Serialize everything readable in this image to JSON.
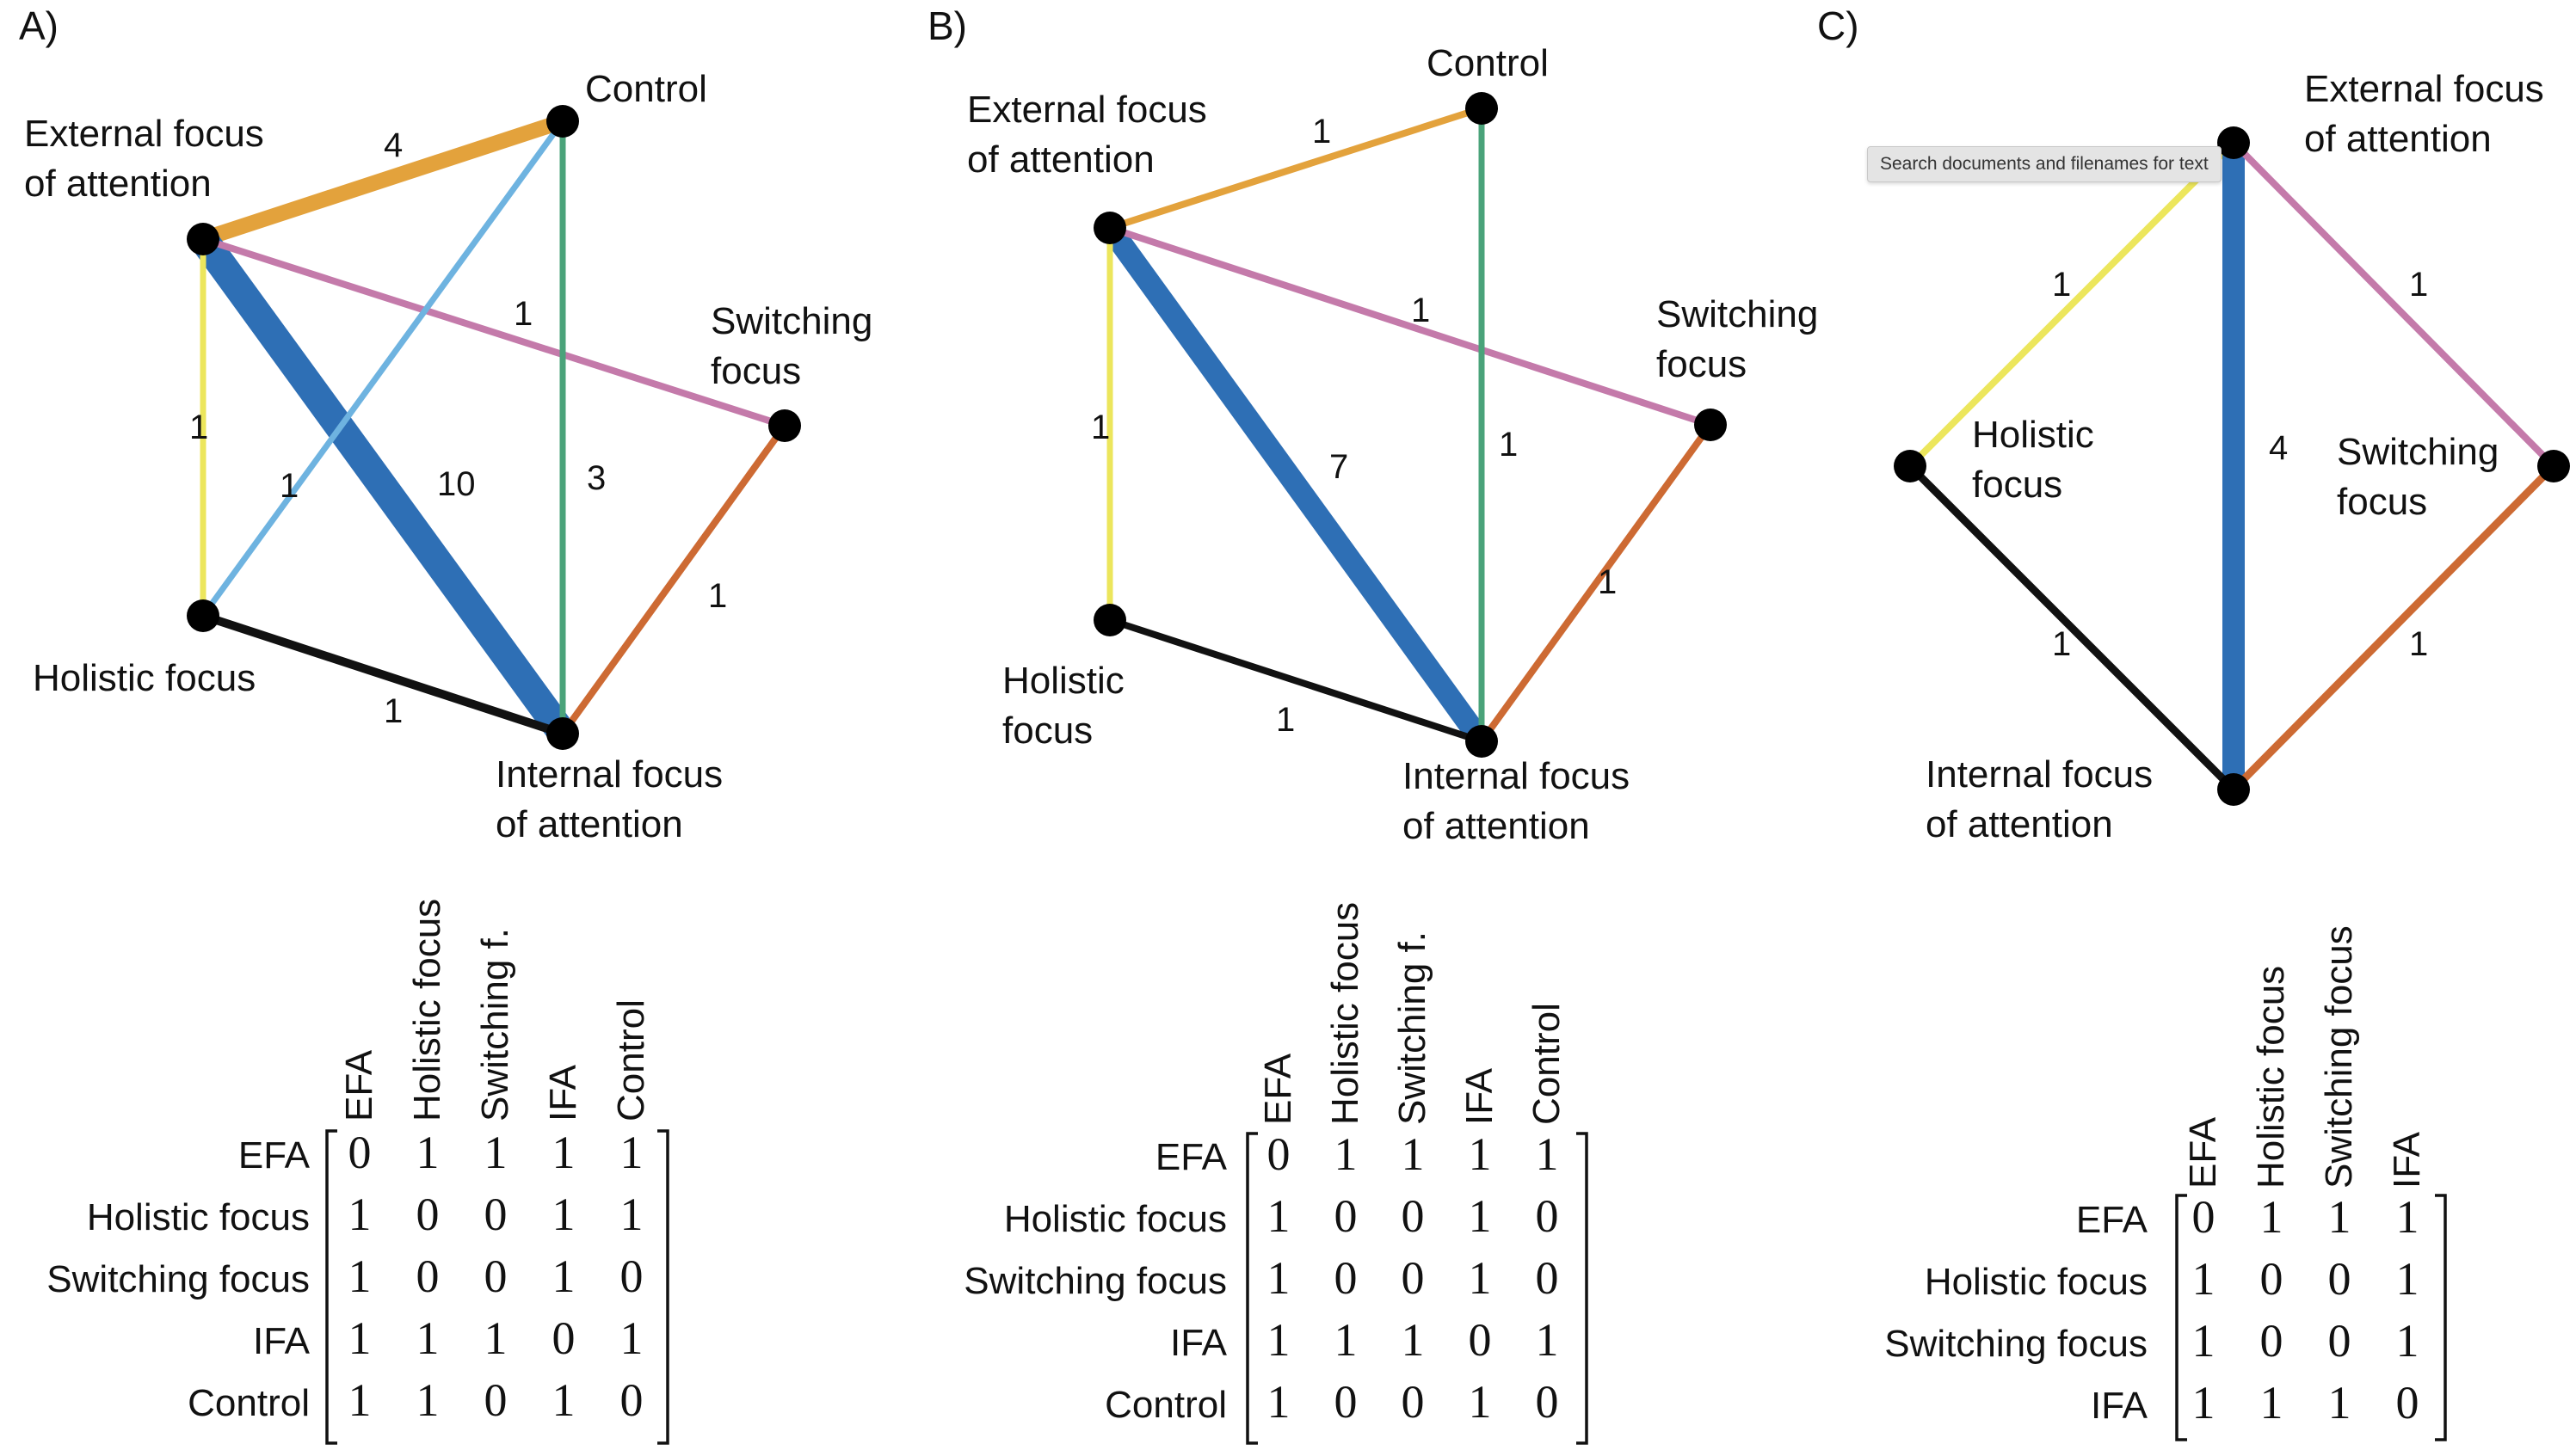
{
  "panels": [
    {
      "letter": "A)",
      "nodes": [
        "External focus|of attention",
        "Control",
        "Switching|focus",
        "Holistic focus",
        "Internal focus|of attention"
      ],
      "edges": [
        {
          "from": "EFA",
          "to": "Control",
          "weight": "4",
          "color": "#e3a23c"
        },
        {
          "from": "EFA",
          "to": "IFA",
          "weight": "10",
          "color": "#2e6fb5"
        },
        {
          "from": "EFA",
          "to": "Switching",
          "weight": "1",
          "color": "#c47aaa"
        },
        {
          "from": "EFA",
          "to": "Holistic",
          "weight": "1",
          "color": "#ece65c"
        },
        {
          "from": "Holistic",
          "to": "Control",
          "weight": "1",
          "color": "#6eb3e0"
        },
        {
          "from": "Control",
          "to": "IFA",
          "weight": "3",
          "color": "#4aa37a"
        },
        {
          "from": "Switching",
          "to": "IFA",
          "weight": "1",
          "color": "#cd6a33"
        },
        {
          "from": "Holistic",
          "to": "IFA",
          "weight": "1",
          "color": "#111111"
        }
      ],
      "matrix": {
        "col_headers": [
          "EFA",
          "Holistic focus",
          "Switching f.",
          "IFA",
          "Control"
        ],
        "row_headers": [
          "EFA",
          "Holistic focus",
          "Switching focus",
          "IFA",
          "Control"
        ],
        "rows": [
          [
            "0",
            "1",
            "1",
            "1",
            "1"
          ],
          [
            "1",
            "0",
            "0",
            "1",
            "1"
          ],
          [
            "1",
            "0",
            "0",
            "1",
            "0"
          ],
          [
            "1",
            "1",
            "1",
            "0",
            "1"
          ],
          [
            "1",
            "1",
            "0",
            "1",
            "0"
          ]
        ]
      }
    },
    {
      "letter": "B)",
      "nodes": [
        "External focus|of attention",
        "Control",
        "Switching|focus",
        "Holistic|focus",
        "Internal focus|of attention"
      ],
      "edges": [
        {
          "from": "EFA",
          "to": "Control",
          "weight": "1",
          "color": "#e3a23c"
        },
        {
          "from": "EFA",
          "to": "IFA",
          "weight": "7",
          "color": "#2e6fb5"
        },
        {
          "from": "EFA",
          "to": "Switching",
          "weight": "1",
          "color": "#c47aaa"
        },
        {
          "from": "EFA",
          "to": "Holistic",
          "weight": "1",
          "color": "#ece65c"
        },
        {
          "from": "Control",
          "to": "IFA",
          "weight": "1",
          "color": "#4aa37a"
        },
        {
          "from": "Switching",
          "to": "IFA",
          "weight": "1",
          "color": "#cd6a33"
        },
        {
          "from": "Holistic",
          "to": "IFA",
          "weight": "1",
          "color": "#111111"
        }
      ],
      "matrix": {
        "col_headers": [
          "EFA",
          "Holistic focus",
          "Switching f.",
          "IFA",
          "Control"
        ],
        "row_headers": [
          "EFA",
          "Holistic focus",
          "Switching focus",
          "IFA",
          "Control"
        ],
        "rows": [
          [
            "0",
            "1",
            "1",
            "1",
            "1"
          ],
          [
            "1",
            "0",
            "0",
            "1",
            "0"
          ],
          [
            "1",
            "0",
            "0",
            "1",
            "0"
          ],
          [
            "1",
            "1",
            "1",
            "0",
            "1"
          ],
          [
            "1",
            "0",
            "0",
            "1",
            "0"
          ]
        ]
      }
    },
    {
      "letter": "C)",
      "nodes": [
        "External focus|of attention",
        "Holistic|focus",
        "Switching|focus",
        "Internal focus|of attention"
      ],
      "edges": [
        {
          "from": "EFA",
          "to": "Holistic",
          "weight": "1",
          "color": "#ece65c"
        },
        {
          "from": "EFA",
          "to": "IFA",
          "weight": "4",
          "color": "#2e6fb5"
        },
        {
          "from": "EFA",
          "to": "Switching",
          "weight": "1",
          "color": "#c47aaa"
        },
        {
          "from": "Holistic",
          "to": "IFA",
          "weight": "1",
          "color": "#111111"
        },
        {
          "from": "Switching",
          "to": "IFA",
          "weight": "1",
          "color": "#cd6a33"
        }
      ],
      "matrix": {
        "col_headers": [
          "EFA",
          "Holistic focus",
          "Switching focus",
          "IFA"
        ],
        "row_headers": [
          "EFA",
          "Holistic focus",
          "Switching focus",
          "IFA"
        ],
        "rows": [
          [
            "0",
            "1",
            "1",
            "1"
          ],
          [
            "1",
            "0",
            "0",
            "1"
          ],
          [
            "1",
            "0",
            "0",
            "1"
          ],
          [
            "1",
            "1",
            "1",
            "0"
          ]
        ]
      }
    }
  ],
  "tooltip": "Search documents and filenames for text"
}
